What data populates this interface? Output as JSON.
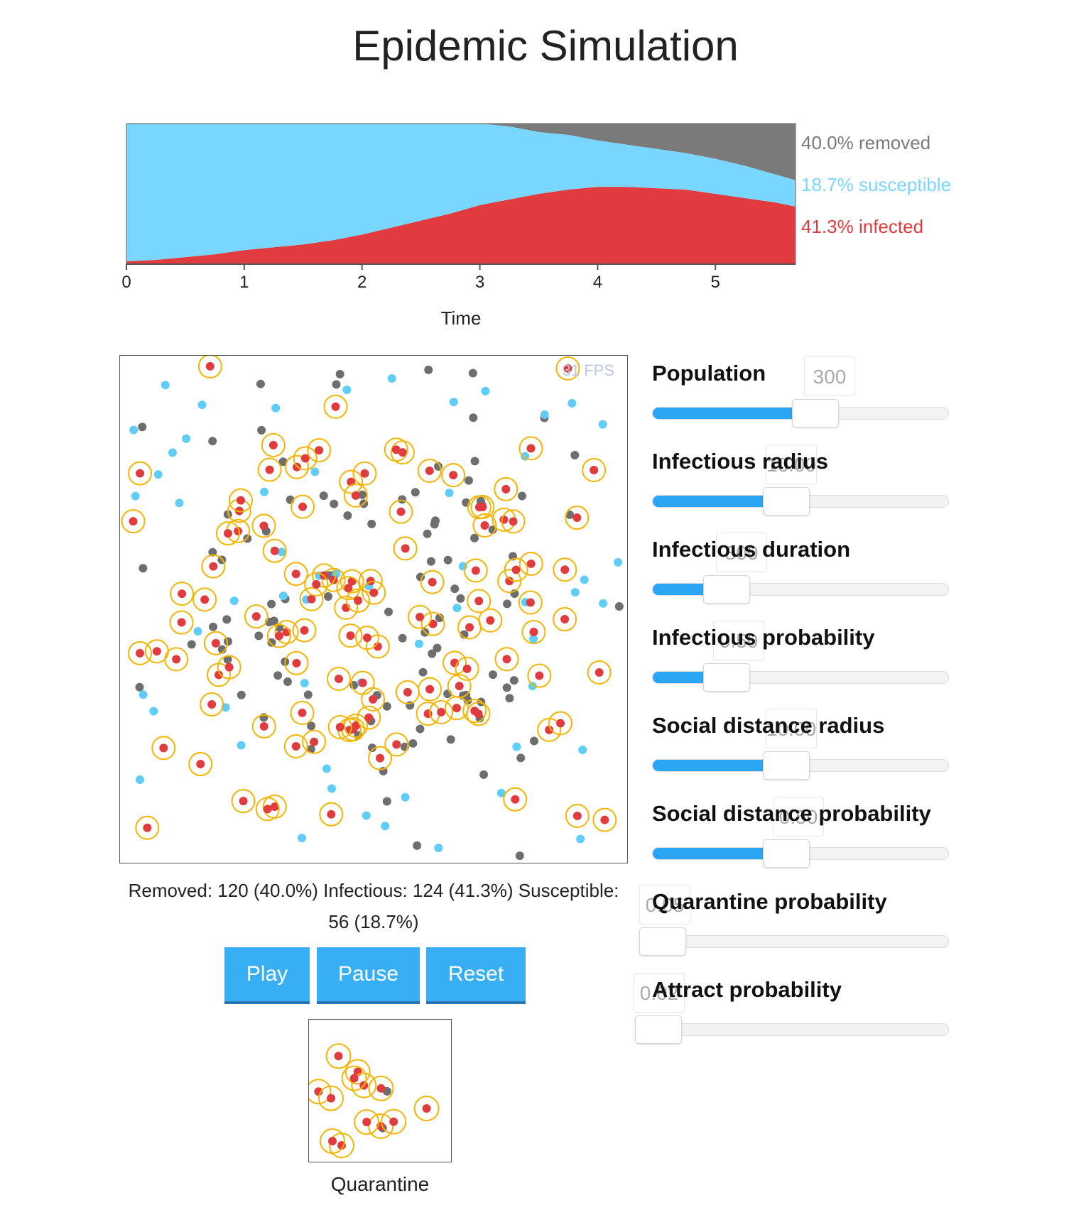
{
  "title": "Epidemic Simulation",
  "chart_data": {
    "type": "area",
    "stacked": true,
    "normalized": true,
    "xlabel": "Time",
    "xlim": [
      0,
      5.68
    ],
    "ylim": [
      0,
      1
    ],
    "xticks": [
      0,
      1,
      2,
      3,
      4,
      5
    ],
    "legend_position": "right",
    "x": [
      0,
      0.25,
      0.5,
      0.75,
      1,
      1.25,
      1.5,
      1.75,
      2,
      2.25,
      2.5,
      2.75,
      3,
      3.25,
      3.5,
      3.75,
      4,
      4.25,
      4.5,
      4.75,
      5,
      5.25,
      5.5,
      5.68
    ],
    "series": [
      {
        "name": "infected",
        "color": "#e03c3f",
        "values": [
          0.02,
          0.03,
          0.05,
          0.07,
          0.1,
          0.12,
          0.14,
          0.17,
          0.21,
          0.26,
          0.31,
          0.36,
          0.42,
          0.46,
          0.5,
          0.53,
          0.55,
          0.55,
          0.54,
          0.53,
          0.5,
          0.47,
          0.44,
          0.41
        ]
      },
      {
        "name": "susceptible",
        "color": "#78d6ff",
        "values": [
          0.98,
          0.97,
          0.95,
          0.93,
          0.9,
          0.88,
          0.86,
          0.83,
          0.79,
          0.74,
          0.69,
          0.64,
          0.58,
          0.52,
          0.44,
          0.39,
          0.33,
          0.3,
          0.28,
          0.26,
          0.25,
          0.23,
          0.2,
          0.187
        ]
      },
      {
        "name": "removed",
        "color": "#7a7a7a",
        "values": [
          0,
          0,
          0,
          0,
          0,
          0,
          0,
          0,
          0,
          0,
          0,
          0,
          0,
          0.02,
          0.06,
          0.08,
          0.12,
          0.15,
          0.18,
          0.21,
          0.25,
          0.3,
          0.36,
          0.4
        ]
      }
    ]
  },
  "legend": [
    {
      "pct": "40.0%",
      "name": "removed",
      "color": "#7a7a7a"
    },
    {
      "pct": "18.7%",
      "name": "susceptible",
      "color": "#78d6ff"
    },
    {
      "pct": "41.3%",
      "name": "infected",
      "color": "#e03c3f"
    }
  ],
  "fps": "31 FPS",
  "stats_text": "Removed: 120 (40.0%) Infectious: 124 (41.3%) Susceptible: 56 (18.7%)",
  "buttons": {
    "play": "Play",
    "pause": "Pause",
    "reset": "Reset"
  },
  "quarantine_label": "Quarantine",
  "colors": {
    "infected": "#e03c3f",
    "ring": "#f4b400",
    "susceptible": "#5fcdf5",
    "removed": "#6e6e6e",
    "accent": "#38aef5"
  },
  "controls": [
    {
      "label": "Population",
      "value": "300",
      "fill": 0.52
    },
    {
      "label": "Infectious radius",
      "value": "10.00",
      "fill": 0.42
    },
    {
      "label": "Infectious duration",
      "value": "300",
      "fill": 0.22
    },
    {
      "label": "Infectious probability",
      "value": "0.50",
      "fill": 0.22
    },
    {
      "label": "Social distance radius",
      "value": "10.00",
      "fill": 0.42
    },
    {
      "label": "Social distance probability",
      "value": "0.50",
      "fill": 0.42
    },
    {
      "label": "Quarantine probability",
      "value": "0.05",
      "fill": 0.0
    },
    {
      "label": "Attract probability",
      "value": "0.02",
      "fill": 0.0
    }
  ]
}
